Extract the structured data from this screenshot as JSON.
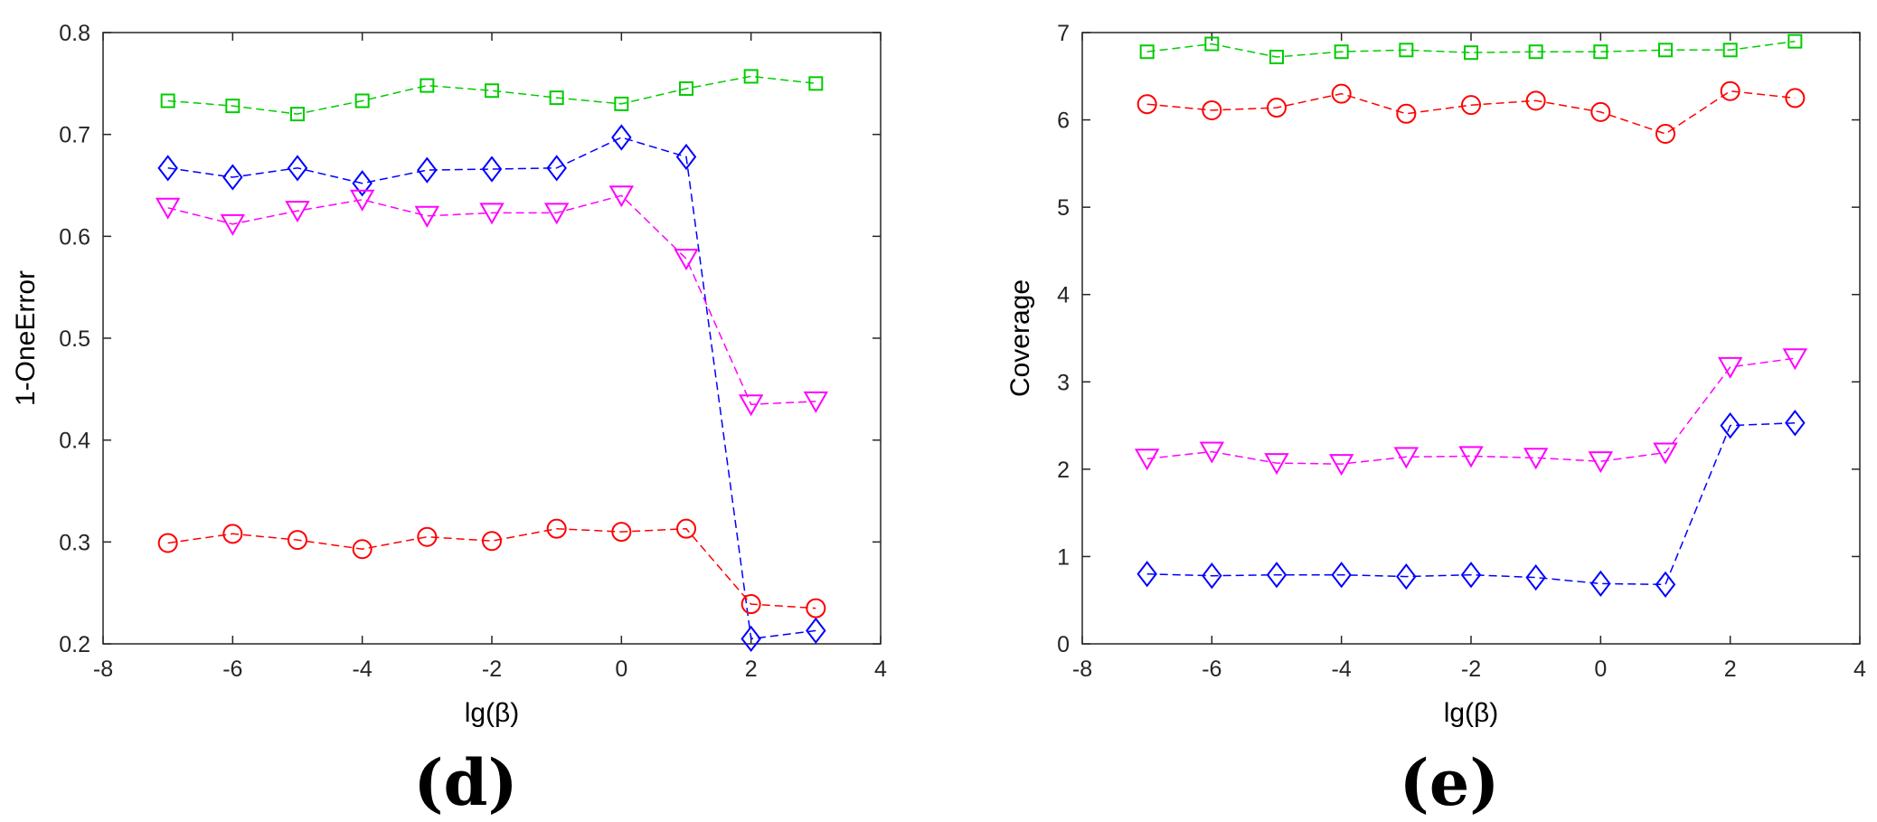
{
  "chart_data": [
    {
      "type": "line",
      "panel_label": "(d)",
      "xlabel": "lg(β)",
      "ylabel": "1-OneError",
      "xlim": [
        -8,
        4
      ],
      "ylim": [
        0.2,
        0.8
      ],
      "xticks": [
        -8,
        -6,
        -4,
        -2,
        0,
        2,
        4
      ],
      "yticks": [
        0.2,
        0.3,
        0.4,
        0.5,
        0.6,
        0.7,
        0.8
      ],
      "xtick_labels": [
        "-8",
        "-6",
        "-4",
        "-2",
        "0",
        "2",
        "4"
      ],
      "ytick_labels": [
        "0.2",
        "0.3",
        "0.4",
        "0.5",
        "0.6",
        "0.7",
        "0.8"
      ],
      "grid": false,
      "x": [
        -7,
        -6,
        -5,
        -4,
        -3,
        -2,
        -1,
        0,
        1,
        2,
        3
      ],
      "series": [
        {
          "name": "green-square",
          "color": "#00cc00",
          "marker": "square",
          "values": [
            0.733,
            0.728,
            0.72,
            0.733,
            0.748,
            0.743,
            0.736,
            0.73,
            0.745,
            0.757,
            0.75
          ]
        },
        {
          "name": "blue-diamond",
          "color": "#0000ff",
          "marker": "diamond",
          "values": [
            0.667,
            0.658,
            0.667,
            0.652,
            0.665,
            0.666,
            0.667,
            0.697,
            0.678,
            0.205,
            0.213
          ]
        },
        {
          "name": "magenta-triangle",
          "color": "#ff00ff",
          "marker": "triangle-down",
          "values": [
            0.628,
            0.612,
            0.625,
            0.636,
            0.62,
            0.623,
            0.623,
            0.64,
            0.578,
            0.435,
            0.438
          ]
        },
        {
          "name": "red-circle",
          "color": "#ff0000",
          "marker": "circle",
          "values": [
            0.299,
            0.308,
            0.302,
            0.293,
            0.305,
            0.301,
            0.313,
            0.31,
            0.313,
            0.239,
            0.235
          ]
        }
      ]
    },
    {
      "type": "line",
      "panel_label": "(e)",
      "xlabel": "lg(β)",
      "ylabel": "Coverage",
      "xlim": [
        -8,
        4
      ],
      "ylim": [
        0,
        7
      ],
      "xticks": [
        -8,
        -6,
        -4,
        -2,
        0,
        2,
        4
      ],
      "yticks": [
        0,
        1,
        2,
        3,
        4,
        5,
        6,
        7
      ],
      "xtick_labels": [
        "-8",
        "-6",
        "-4",
        "-2",
        "0",
        "2",
        "4"
      ],
      "ytick_labels": [
        "0",
        "1",
        "2",
        "3",
        "4",
        "5",
        "6",
        "7"
      ],
      "grid": false,
      "x": [
        -7,
        -6,
        -5,
        -4,
        -3,
        -2,
        -1,
        0,
        1,
        2,
        3
      ],
      "series": [
        {
          "name": "green-square",
          "color": "#00cc00",
          "marker": "square",
          "values": [
            6.78,
            6.87,
            6.72,
            6.78,
            6.8,
            6.77,
            6.78,
            6.78,
            6.8,
            6.8,
            6.9
          ]
        },
        {
          "name": "red-circle",
          "color": "#ff0000",
          "marker": "circle",
          "values": [
            6.18,
            6.11,
            6.14,
            6.3,
            6.07,
            6.17,
            6.22,
            6.09,
            5.84,
            6.33,
            6.25
          ]
        },
        {
          "name": "magenta-triangle",
          "color": "#ff00ff",
          "marker": "triangle-down",
          "values": [
            2.12,
            2.2,
            2.07,
            2.06,
            2.14,
            2.15,
            2.13,
            2.09,
            2.19,
            3.17,
            3.27
          ]
        },
        {
          "name": "blue-diamond",
          "color": "#0000ff",
          "marker": "diamond",
          "values": [
            0.8,
            0.78,
            0.79,
            0.79,
            0.77,
            0.79,
            0.76,
            0.69,
            0.68,
            2.5,
            2.53
          ]
        }
      ]
    }
  ]
}
